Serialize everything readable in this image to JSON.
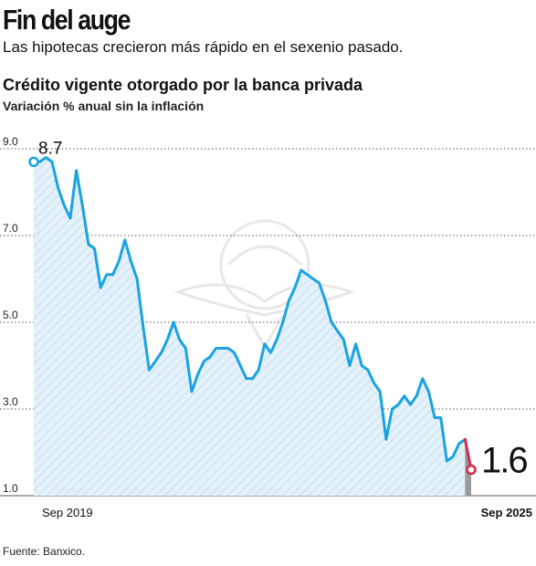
{
  "headline": "Fin del auge",
  "subhead": "Las hipotecas crecieron más rápido en el sexenio pasado.",
  "source": "Fuente: Banxico.",
  "colors": {
    "line": "#1aa3e0",
    "highlight": "#d6284f",
    "area_fill": "#e3f1fb",
    "hatch": "#b9d2e2",
    "grid": "#555555",
    "text": "#111111"
  },
  "chart_data": {
    "type": "area",
    "title": "Crédito vigente otorgado por la banca privada",
    "subtitle": "Variación % anual sin la inflación",
    "x_tick_labels": [
      "Sep 2019",
      "Sep 2025"
    ],
    "x_range": [
      "Sep 2019",
      "Sep 2025"
    ],
    "ylim": [
      1.0,
      9.0
    ],
    "y_ticks": [
      1.0,
      3.0,
      5.0,
      7.0,
      9.0
    ],
    "y_tick_labels": [
      "1.0",
      "3.0",
      "5.0",
      "7.0",
      "9.0"
    ],
    "grid": "horizontal dotted",
    "annotations": {
      "first": "8.7",
      "last": "1.6"
    },
    "series": [
      {
        "values": [
          8.7,
          8.7,
          8.8,
          8.7,
          8.1,
          7.7,
          7.4,
          8.5,
          7.7,
          6.8,
          6.7,
          5.8,
          6.1,
          6.1,
          6.4,
          6.9,
          6.4,
          6.0,
          4.9,
          3.9,
          4.1,
          4.3,
          4.6,
          5.0,
          4.6,
          4.4,
          3.4,
          3.8,
          4.1,
          4.2,
          4.4,
          4.4,
          4.4,
          4.3,
          4.0,
          3.7,
          3.7,
          3.9,
          4.5,
          4.3,
          4.6,
          5.0,
          5.5,
          5.8,
          6.2,
          6.1,
          6.0,
          5.9,
          5.5,
          5.0,
          4.8,
          4.6,
          4.0,
          4.5,
          4.0,
          3.9,
          3.6,
          3.4,
          2.3,
          3.0,
          3.1,
          3.3,
          3.1,
          3.3,
          3.7,
          3.4,
          2.8,
          2.8,
          1.8,
          1.9,
          2.2,
          2.3,
          1.6
        ]
      }
    ]
  }
}
